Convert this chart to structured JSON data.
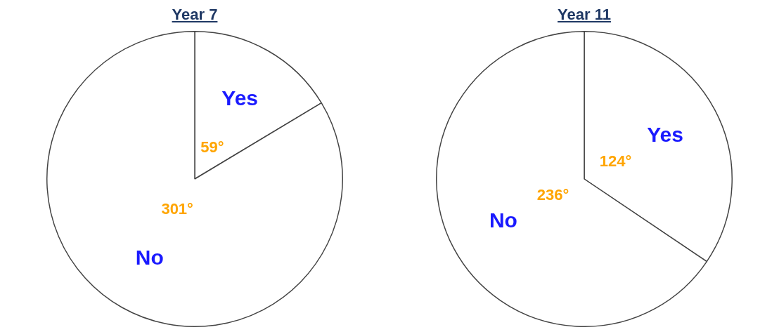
{
  "chart_data": [
    {
      "type": "pie",
      "title": "Year 7",
      "categories": [
        "Yes",
        "No"
      ],
      "values": [
        59,
        301
      ],
      "colors": [
        "#ffffff",
        "#ffffff"
      ],
      "value_labels": [
        "59°",
        "301°"
      ]
    },
    {
      "type": "pie",
      "title": "Year 11",
      "categories": [
        "Yes",
        "No"
      ],
      "values": [
        124,
        236
      ],
      "colors": [
        "#ffffff",
        "#ffffff"
      ],
      "value_labels": [
        "124°",
        "236°"
      ]
    }
  ]
}
